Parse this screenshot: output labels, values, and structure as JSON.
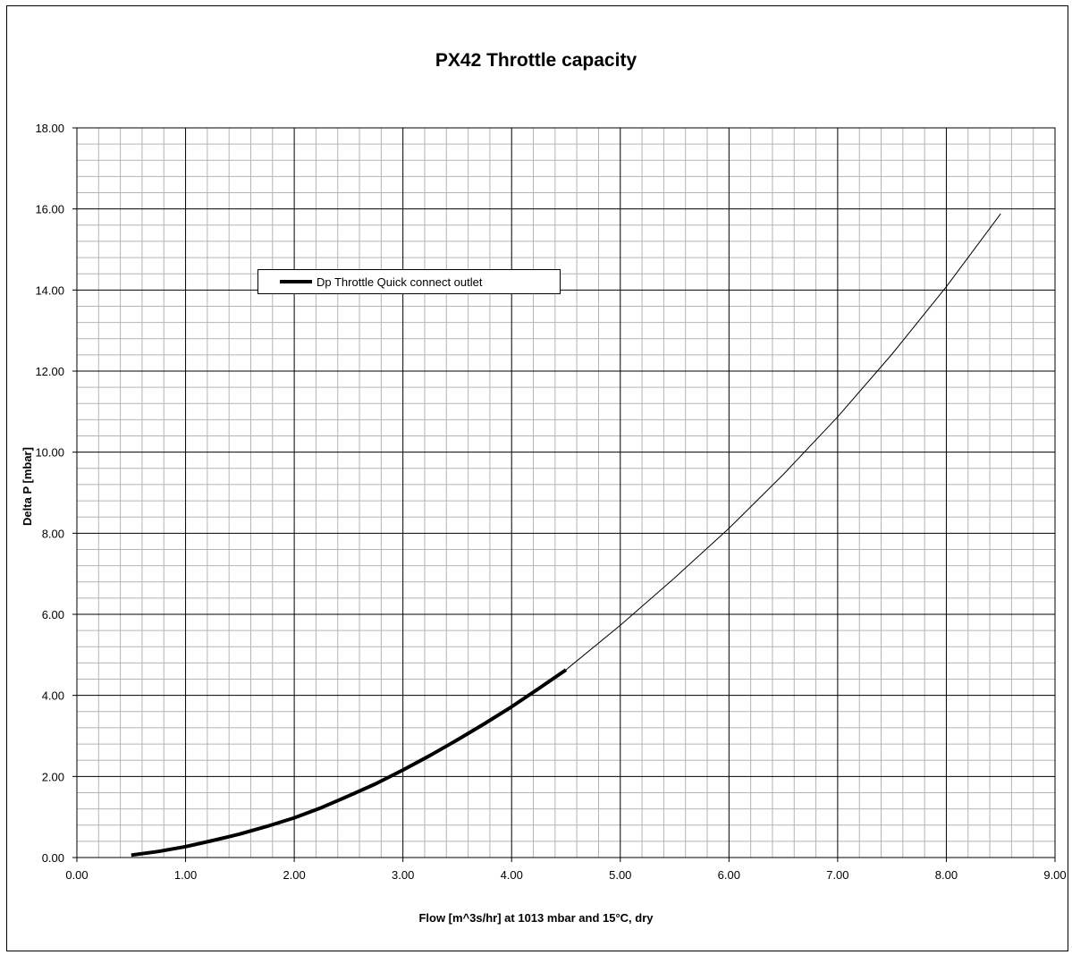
{
  "chart_data": {
    "type": "line",
    "title": "PX42 Throttle capacity",
    "xlabel": "Flow [m^3s/hr] at 1013 mbar and 15°C, dry",
    "ylabel": "Delta P [mbar]",
    "xlim": [
      0,
      9
    ],
    "ylim": [
      0,
      18
    ],
    "x_ticks": [
      "0.00",
      "1.00",
      "2.00",
      "3.00",
      "4.00",
      "5.00",
      "6.00",
      "7.00",
      "8.00",
      "9.00"
    ],
    "y_ticks": [
      "0.00",
      "2.00",
      "4.00",
      "6.00",
      "8.00",
      "10.00",
      "12.00",
      "14.00",
      "16.00",
      "18.00"
    ],
    "grid": true,
    "legend_position": "upper-left",
    "series": [
      {
        "name": "Dp Throttle Quick connect outlet",
        "color": "#000000",
        "style": "thick",
        "x": [
          0.5,
          0.75,
          1.0,
          1.25,
          1.5,
          1.75,
          2.0,
          2.25,
          2.5,
          2.75,
          3.0,
          3.25,
          3.5,
          3.75,
          4.0,
          4.25,
          4.5
        ],
        "y": [
          0.06,
          0.15,
          0.27,
          0.42,
          0.58,
          0.77,
          0.98,
          1.23,
          1.52,
          1.82,
          2.16,
          2.52,
          2.9,
          3.3,
          3.72,
          4.17,
          4.63
        ]
      },
      {
        "name": "",
        "color": "#000000",
        "style": "thin",
        "x": [
          4.5,
          5.0,
          5.5,
          6.0,
          6.5,
          7.0,
          7.5,
          8.0,
          8.5
        ],
        "y": [
          4.63,
          5.73,
          6.9,
          8.12,
          9.45,
          10.87,
          12.42,
          14.08,
          15.88
        ]
      }
    ]
  }
}
